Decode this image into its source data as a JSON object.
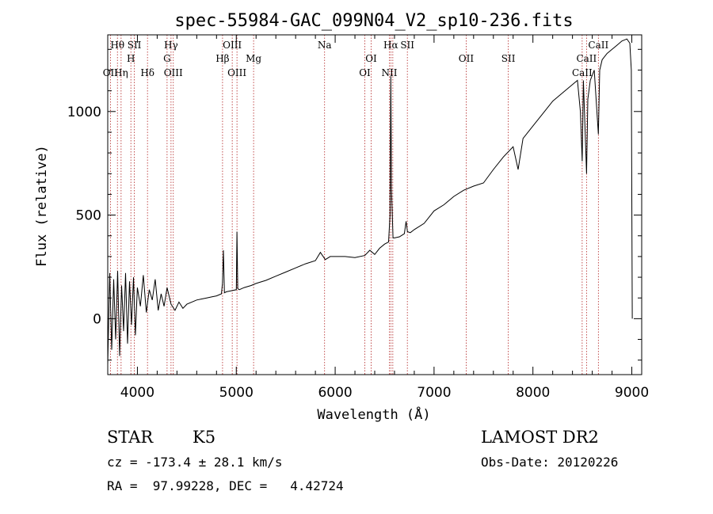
{
  "chart_data": {
    "type": "line",
    "title": "spec-55984-GAC_099N04_V2_sp10-236.fits",
    "xlabel": "Wavelength (Å)",
    "ylabel": "Flux (relative)",
    "xlim": [
      3700,
      9100
    ],
    "ylim": [
      -270,
      1370
    ],
    "xticks": [
      4000,
      5000,
      6000,
      7000,
      8000,
      9000
    ],
    "yticks": [
      0,
      500,
      1000
    ],
    "line_color": "#000000",
    "marker_color": "#b22222",
    "series": [
      {
        "x": [
          3700,
          3720,
          3740,
          3760,
          3780,
          3800,
          3820,
          3840,
          3860,
          3880,
          3900,
          3920,
          3940,
          3960,
          3980,
          4000,
          4030,
          4060,
          4090,
          4120,
          4150,
          4180,
          4210,
          4240,
          4270,
          4300,
          4340,
          4380,
          4420,
          4460,
          4500,
          4550,
          4600,
          4650,
          4700,
          4750,
          4800,
          4850,
          4860,
          4870,
          4880,
          4900,
          4950,
          5000,
          5007,
          5015,
          5030,
          5080,
          5150,
          5200,
          5300,
          5400,
          5500,
          5600,
          5700,
          5800,
          5850,
          5900,
          5950,
          6000,
          6100,
          6200,
          6300,
          6350,
          6400,
          6450,
          6500,
          6540,
          6555,
          6563,
          6570,
          6585,
          6600,
          6650,
          6700,
          6717,
          6731,
          6760,
          6800,
          6900,
          7000,
          7100,
          7200,
          7300,
          7400,
          7500,
          7600,
          7700,
          7800,
          7850,
          7900,
          8000,
          8100,
          8200,
          8300,
          8400,
          8450,
          8480,
          8498,
          8510,
          8542,
          8555,
          8580,
          8620,
          8662,
          8675,
          8700,
          8750,
          8800,
          8850,
          8900,
          8950,
          8980,
          8995,
          9000,
          9005
        ],
        "y": [
          -220,
          220,
          -150,
          190,
          -100,
          230,
          -180,
          160,
          -60,
          220,
          -120,
          180,
          -30,
          200,
          -80,
          150,
          60,
          210,
          30,
          140,
          90,
          190,
          40,
          120,
          60,
          150,
          70,
          40,
          80,
          50,
          70,
          80,
          90,
          95,
          100,
          105,
          110,
          120,
          170,
          330,
          125,
          130,
          135,
          140,
          420,
          145,
          140,
          150,
          160,
          170,
          185,
          205,
          225,
          245,
          265,
          280,
          320,
          285,
          300,
          300,
          300,
          295,
          305,
          330,
          310,
          340,
          360,
          370,
          500,
          1170,
          620,
          390,
          390,
          395,
          410,
          470,
          420,
          415,
          430,
          460,
          520,
          550,
          590,
          620,
          640,
          655,
          720,
          780,
          830,
          720,
          870,
          930,
          990,
          1050,
          1090,
          1130,
          1150,
          1000,
          760,
          1150,
          700,
          1060,
          1150,
          1200,
          890,
          1200,
          1250,
          1280,
          1300,
          1320,
          1340,
          1350,
          1330,
          1200,
          600,
          0
        ]
      }
    ],
    "lines": [
      {
        "x": 3727,
        "label": "OII",
        "row": 3
      },
      {
        "x": 3798,
        "label": "Hθ",
        "row": 1
      },
      {
        "x": 3835,
        "label": "Hη",
        "row": 3
      },
      {
        "x": 3934,
        "label": "H",
        "row": 2
      },
      {
        "x": 3969,
        "label": "SII",
        "row": 1
      },
      {
        "x": 4102,
        "label": "Hδ",
        "row": 3
      },
      {
        "x": 4300,
        "label": "G",
        "row": 2
      },
      {
        "x": 4340,
        "label": "Hγ",
        "row": 1
      },
      {
        "x": 4363,
        "label": "OIII",
        "row": 3
      },
      {
        "x": 4861,
        "label": "Hβ",
        "row": 2
      },
      {
        "x": 4959,
        "label": "OIII",
        "row": 1
      },
      {
        "x": 5007,
        "label": "OIII",
        "row": 3
      },
      {
        "x": 5175,
        "label": "Mg",
        "row": 2
      },
      {
        "x": 5893,
        "label": "Na",
        "row": 1
      },
      {
        "x": 6300,
        "label": "OI",
        "row": 3
      },
      {
        "x": 6364,
        "label": "OI",
        "row": 2
      },
      {
        "x": 6548,
        "label": "NII",
        "row": 3
      },
      {
        "x": 6563,
        "label": "Hα",
        "row": 1
      },
      {
        "x": 6583,
        "label": "",
        "row": 3
      },
      {
        "x": 6730,
        "label": "SII",
        "row": 1
      },
      {
        "x": 7325,
        "label": "OII",
        "row": 2
      },
      {
        "x": 7751,
        "label": "SII",
        "row": 2
      },
      {
        "x": 8498,
        "label": "CaII",
        "row": 3
      },
      {
        "x": 8542,
        "label": "CaII",
        "row": 2
      },
      {
        "x": 8662,
        "label": "CaII",
        "row": 1
      }
    ]
  },
  "info": {
    "class": "STAR",
    "subclass": "K5",
    "survey": "LAMOST DR2",
    "cz": "cz = -173.4 ± 28.1 km/s",
    "obsdate": "Obs-Date: 20120226",
    "radec": "RA =  97.99228, DEC =   4.42724"
  }
}
